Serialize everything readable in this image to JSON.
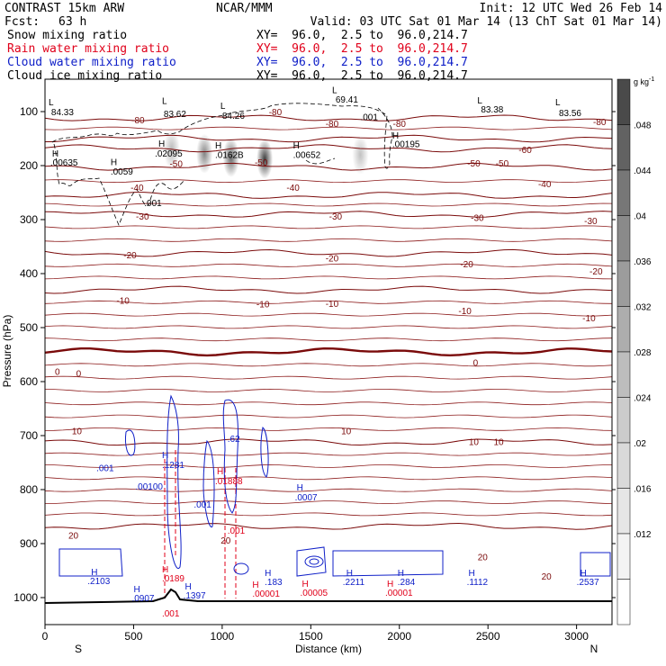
{
  "header": {
    "model": "CONTRAST 15km ARW",
    "institution": "NCAR/MMM",
    "init": "Init: 12 UTC Wed 26 Feb 14",
    "fcst_label": "Fcst:",
    "fcst_value": "63 h",
    "valid": "Valid: 03 UTC Sat 01 Mar 14 (13 ChT Sat 01 Mar 14)",
    "fields": [
      {
        "name": "Snow mixing ratio",
        "xy": "XY=  96.0,  2.5 to  96.0,214.7",
        "color": "#000000"
      },
      {
        "name": "Rain water mixing ratio",
        "xy": "XY=  96.0,  2.5 to  96.0,214.7",
        "color": "#e0001a"
      },
      {
        "name": "Cloud water mixing ratio",
        "xy": "XY=  96.0,  2.5 to  96.0,214.7",
        "color": "#1020c8"
      },
      {
        "name": "Cloud ice mixing ratio",
        "xy": "XY=  96.0,  2.5 to  96.0,214.7",
        "color": "#000000"
      }
    ]
  },
  "chart_data": {
    "type": "cross-section",
    "xlabel": "Distance (km)",
    "ylabel": "Pressure (hPa)",
    "xlim": [
      0,
      3200
    ],
    "ylim": [
      1050,
      40
    ],
    "x_ticks": [
      0,
      500,
      1000,
      1500,
      2000,
      2500,
      3000
    ],
    "y_ticks": [
      100,
      200,
      300,
      400,
      500,
      600,
      700,
      800,
      900,
      1000
    ],
    "end_labels": {
      "left": "S",
      "right": "N"
    },
    "colorbar": {
      "unit": "g kg",
      "unit_exp": "-1",
      "labels": [
        ".012",
        ".016",
        ".02",
        ".024",
        ".028",
        ".032",
        ".036",
        ".04",
        ".044",
        ".048"
      ],
      "colors": [
        "#ffffff",
        "#f3f3f3",
        "#e6e6e6",
        "#d9d9d9",
        "#cccccc",
        "#bdbdbd",
        "#adadad",
        "#9c9c9c",
        "#8a8a8a",
        "#777777",
        "#626262",
        "#4a4a4a"
      ]
    },
    "temperature_levels": [
      {
        "value": -80,
        "p": 112
      },
      {
        "value": -70,
        "p": 150
      },
      {
        "value": -60,
        "p": 168
      },
      {
        "value": -50,
        "p": 202
      },
      {
        "value": -40,
        "p": 255
      },
      {
        "value": -30,
        "p": 290
      },
      {
        "value": -20,
        "p": 362
      },
      {
        "value": -10,
        "p": 430
      },
      {
        "value": 0,
        "p": 545
      },
      {
        "value": 10,
        "p": 712
      },
      {
        "value": 20,
        "p": 868
      }
    ],
    "temperature_labels": [
      {
        "text": "-80",
        "x": 1300,
        "p": 100
      },
      {
        "text": "-80",
        "x": 525,
        "p": 115
      },
      {
        "text": "-80",
        "x": 1620,
        "p": 122
      },
      {
        "text": "-80",
        "x": 2000,
        "p": 122
      },
      {
        "text": "-80",
        "x": 3130,
        "p": 118
      },
      {
        "text": "-60",
        "x": 2710,
        "p": 170
      },
      {
        "text": "-50",
        "x": 740,
        "p": 196
      },
      {
        "text": "-50",
        "x": 1220,
        "p": 193
      },
      {
        "text": "-50",
        "x": 2420,
        "p": 195
      },
      {
        "text": "-50",
        "x": 2580,
        "p": 195
      },
      {
        "text": "-40",
        "x": 520,
        "p": 240
      },
      {
        "text": "-40",
        "x": 1400,
        "p": 240
      },
      {
        "text": "-40",
        "x": 2820,
        "p": 233
      },
      {
        "text": "-30",
        "x": 550,
        "p": 293
      },
      {
        "text": "-30",
        "x": 1640,
        "p": 293
      },
      {
        "text": "-30",
        "x": 2440,
        "p": 296
      },
      {
        "text": "-30",
        "x": 3080,
        "p": 302
      },
      {
        "text": "-20",
        "x": 480,
        "p": 365
      },
      {
        "text": "-20",
        "x": 1620,
        "p": 371
      },
      {
        "text": "-20",
        "x": 2380,
        "p": 382
      },
      {
        "text": "-20",
        "x": 3110,
        "p": 395
      },
      {
        "text": "-10",
        "x": 440,
        "p": 449
      },
      {
        "text": "-10",
        "x": 1230,
        "p": 456
      },
      {
        "text": "-10",
        "x": 1620,
        "p": 455
      },
      {
        "text": "-10",
        "x": 2370,
        "p": 468
      },
      {
        "text": "-10",
        "x": 3070,
        "p": 482
      },
      {
        "text": "0",
        "x": 70,
        "p": 581
      },
      {
        "text": "0",
        "x": 190,
        "p": 584
      },
      {
        "text": "0",
        "x": 2430,
        "p": 564
      },
      {
        "text": "10",
        "x": 180,
        "p": 691
      },
      {
        "text": "10",
        "x": 1700,
        "p": 691
      },
      {
        "text": "10",
        "x": 2420,
        "p": 711
      },
      {
        "text": "10",
        "x": 2560,
        "p": 711
      },
      {
        "text": "20",
        "x": 160,
        "p": 884
      },
      {
        "text": "20",
        "x": 1020,
        "p": 893
      },
      {
        "text": "20",
        "x": 2470,
        "p": 924
      },
      {
        "text": "20",
        "x": 2830,
        "p": 960
      }
    ],
    "snow_labels": [
      {
        "text": "L",
        "x": 20,
        "p": 88
      },
      {
        "text": "84.33",
        "x": 35,
        "p": 107
      },
      {
        "text": "L",
        "x": 660,
        "p": 86
      },
      {
        "text": "83.62",
        "x": 670,
        "p": 110
      },
      {
        "text": "L",
        "x": 990,
        "p": 95
      },
      {
        "text": "84.26",
        "x": 1000,
        "p": 113
      },
      {
        "text": "L",
        "x": 1620,
        "p": 66
      },
      {
        "text": "69.41",
        "x": 1640,
        "p": 83
      },
      {
        "text": "L",
        "x": 2440,
        "p": 85
      },
      {
        "text": "83.38",
        "x": 2460,
        "p": 102
      },
      {
        "text": "L",
        "x": 2880,
        "p": 88
      },
      {
        "text": "83.56",
        "x": 2900,
        "p": 108
      },
      {
        "text": ".001",
        "x": 1780,
        "p": 116
      },
      {
        "text": "H",
        "x": 40,
        "p": 183
      },
      {
        "text": ".00635",
        "x": 30,
        "p": 200
      },
      {
        "text": "H",
        "x": 640,
        "p": 165
      },
      {
        "text": ".02095",
        "x": 620,
        "p": 183
      },
      {
        "text": "H",
        "x": 960,
        "p": 168
      },
      {
        "text": ".0162B",
        "x": 960,
        "p": 186
      },
      {
        "text": "H",
        "x": 1400,
        "p": 168
      },
      {
        "text": ".00652",
        "x": 1400,
        "p": 186
      },
      {
        "text": "H",
        "x": 1960,
        "p": 150
      },
      {
        "text": ".00195",
        "x": 1960,
        "p": 166
      },
      {
        "text": "H",
        "x": 370,
        "p": 199
      },
      {
        "text": ".0059",
        "x": 370,
        "p": 217
      },
      {
        "text": ".001",
        "x": 560,
        "p": 275
      }
    ],
    "rain_labels": [
      {
        "text": "H",
        "x": 970,
        "p": 772
      },
      {
        "text": ".01888",
        "x": 960,
        "p": 790
      },
      {
        "text": ".001",
        "x": 1030,
        "p": 882
      },
      {
        "text": "H",
        "x": 660,
        "p": 953
      },
      {
        "text": ".0189",
        "x": 660,
        "p": 970
      },
      {
        "text": "H",
        "x": 1170,
        "p": 982
      },
      {
        "text": ".00001",
        "x": 1170,
        "p": 998
      },
      {
        "text": "H",
        "x": 1450,
        "p": 980
      },
      {
        "text": ".00005",
        "x": 1440,
        "p": 997
      },
      {
        "text": "H",
        "x": 1930,
        "p": 980
      },
      {
        "text": ".00001",
        "x": 1920,
        "p": 997
      },
      {
        "text": ".001",
        "x": 660,
        "p": 1035
      }
    ],
    "cloud_water_labels": [
      {
        "text": ".001",
        "x": 290,
        "p": 766
      },
      {
        "text": "H",
        "x": 660,
        "p": 742
      },
      {
        "text": ".1281",
        "x": 660,
        "p": 760
      },
      {
        "text": ".62",
        "x": 1030,
        "p": 712
      },
      {
        "text": "H",
        "x": 1420,
        "p": 802
      },
      {
        "text": ".0007",
        "x": 1410,
        "p": 820
      },
      {
        "text": ".00100",
        "x": 510,
        "p": 800
      },
      {
        "text": ".001",
        "x": 840,
        "p": 833
      },
      {
        "text": "H",
        "x": 260,
        "p": 958
      },
      {
        "text": ".2103",
        "x": 240,
        "p": 975
      },
      {
        "text": "H",
        "x": 500,
        "p": 990
      },
      {
        "text": ".0907",
        "x": 490,
        "p": 1007
      },
      {
        "text": "H",
        "x": 790,
        "p": 985
      },
      {
        "text": ".1397",
        "x": 780,
        "p": 1002
      },
      {
        "text": "H",
        "x": 1240,
        "p": 960
      },
      {
        "text": ".183",
        "x": 1240,
        "p": 977
      },
      {
        "text": "H",
        "x": 1700,
        "p": 960
      },
      {
        "text": ".2211",
        "x": 1680,
        "p": 977
      },
      {
        "text": "H",
        "x": 1990,
        "p": 960
      },
      {
        "text": ".284",
        "x": 1990,
        "p": 977
      },
      {
        "text": "H",
        "x": 2390,
        "p": 960
      },
      {
        "text": ".1112",
        "x": 2380,
        "p": 977
      },
      {
        "text": "H",
        "x": 3020,
        "p": 960
      },
      {
        "text": ".2537",
        "x": 3000,
        "p": 977
      }
    ],
    "snow_blobs": [
      {
        "x": 715,
        "p": 170,
        "intensity": 0.35
      },
      {
        "x": 900,
        "p": 178,
        "intensity": 0.6
      },
      {
        "x": 1050,
        "p": 185,
        "intensity": 0.75
      },
      {
        "x": 1240,
        "p": 188,
        "intensity": 0.95
      },
      {
        "x": 1780,
        "p": 180,
        "intensity": 0.3
      }
    ]
  }
}
